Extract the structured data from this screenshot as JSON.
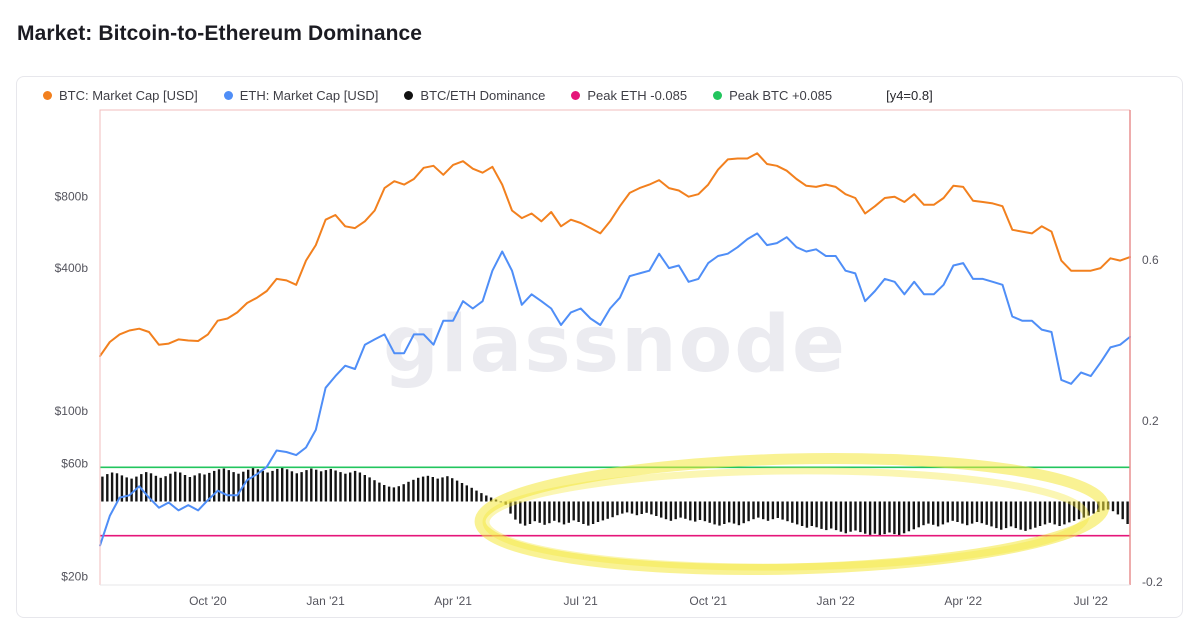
{
  "page": {
    "title": "Market: Bitcoin-to-Ethereum Dominance",
    "watermark": "glassnode"
  },
  "legend": {
    "items": [
      {
        "label": "BTC: Market Cap [USD]",
        "color": "#f2801e"
      },
      {
        "label": "ETH: Market Cap [USD]",
        "color": "#4f8ef7"
      },
      {
        "label": "BTC/ETH Dominance",
        "color": "#111111"
      },
      {
        "label": "Peak ETH -0.085",
        "color": "#e5157a"
      },
      {
        "label": "Peak BTC +0.085",
        "color": "#22c55e"
      }
    ],
    "axis_note": "[y4=0.8]"
  },
  "chart_data": {
    "type": "line",
    "title": "Market: Bitcoin-to-Ethereum Dominance",
    "watermark": "glassnode",
    "grid": false,
    "legend_position": "top",
    "x_axis": {
      "unit": "weeks since Jul 2020",
      "domain_weeks": [
        0,
        105
      ],
      "ticks": [
        {
          "label": "Oct '20",
          "week": 11
        },
        {
          "label": "Jan '21",
          "week": 23
        },
        {
          "label": "Apr '21",
          "week": 36
        },
        {
          "label": "Jul '21",
          "week": 49
        },
        {
          "label": "Oct '21",
          "week": 62
        },
        {
          "label": "Jan '22",
          "week": 75
        },
        {
          "label": "Apr '22",
          "week": 88
        },
        {
          "label": "Jul '22",
          "week": 101
        }
      ]
    },
    "y_axis_left": {
      "scale": "log",
      "unit": "USD billions",
      "domain": [
        18.4,
        1858
      ],
      "ticks": [
        {
          "label": "$800b",
          "value": 800
        },
        {
          "label": "$400b",
          "value": 400
        },
        {
          "label": "$100b",
          "value": 100
        },
        {
          "label": "$60b",
          "value": 60
        },
        {
          "label": "$20b",
          "value": 20
        }
      ]
    },
    "y_axis_right": {
      "scale": "linear",
      "domain": [
        -0.2075,
        0.973
      ],
      "note": "[y4=0.8]",
      "ticks": [
        {
          "label": "0.6",
          "value": 0.6
        },
        {
          "label": "0.2",
          "value": 0.2
        },
        {
          "label": "-0.2",
          "value": -0.2
        }
      ]
    },
    "series": [
      {
        "name": "BTC: Market Cap [USD]",
        "type": "line",
        "axis": "left",
        "color": "#f2801e",
        "unit": "$b",
        "values": [
          170,
          195,
          210,
          218,
          222,
          215,
          190,
          192,
          200,
          198,
          197,
          210,
          240,
          245,
          260,
          285,
          300,
          320,
          360,
          355,
          340,
          430,
          500,
          640,
          670,
          600,
          590,
          630,
          700,
          870,
          930,
          900,
          950,
          1060,
          1080,
          990,
          1090,
          1130,
          1050,
          1010,
          1070,
          900,
          700,
          650,
          680,
          630,
          690,
          600,
          640,
          620,
          590,
          560,
          630,
          730,
          830,
          870,
          900,
          940,
          870,
          850,
          800,
          820,
          900,
          1040,
          1150,
          1160,
          1160,
          1220,
          1100,
          1080,
          1030,
          950,
          890,
          880,
          900,
          880,
          820,
          790,
          680,
          730,
          790,
          800,
          760,
          820,
          740,
          740,
          790,
          890,
          880,
          770,
          760,
          750,
          730,
          580,
          570,
          560,
          600,
          570,
          430,
          390,
          390,
          390,
          400,
          440,
          430,
          445
        ]
      },
      {
        "name": "ETH: Market Cap [USD]",
        "type": "line",
        "axis": "left",
        "color": "#4f8ef7",
        "unit": "$b",
        "values": [
          27,
          36,
          43,
          44,
          48,
          43,
          39,
          41,
          38,
          40,
          38,
          42,
          46,
          44,
          44,
          51,
          54,
          58,
          68,
          67,
          65,
          70,
          83,
          125,
          140,
          155,
          150,
          190,
          200,
          210,
          175,
          175,
          210,
          210,
          190,
          240,
          240,
          290,
          270,
          290,
          390,
          470,
          390,
          280,
          310,
          290,
          270,
          230,
          260,
          270,
          245,
          230,
          270,
          300,
          370,
          380,
          390,
          460,
          400,
          410,
          350,
          360,
          420,
          450,
          460,
          490,
          530,
          560,
          500,
          510,
          540,
          490,
          470,
          480,
          450,
          450,
          390,
          380,
          290,
          320,
          360,
          350,
          310,
          350,
          310,
          310,
          340,
          410,
          420,
          360,
          360,
          350,
          340,
          250,
          240,
          240,
          220,
          215,
          135,
          130,
          145,
          140,
          160,
          185,
          190,
          205
        ]
      },
      {
        "name": "BTC/ETH Dominance",
        "type": "bar",
        "axis": "right",
        "color": "#141414",
        "baseline": 0,
        "values": [
          0.062,
          0.068,
          0.072,
          0.07,
          0.065,
          0.06,
          0.057,
          0.062,
          0.068,
          0.073,
          0.07,
          0.064,
          0.059,
          0.063,
          0.069,
          0.074,
          0.072,
          0.066,
          0.061,
          0.065,
          0.07,
          0.067,
          0.071,
          0.076,
          0.08,
          0.082,
          0.078,
          0.073,
          0.069,
          0.074,
          0.079,
          0.083,
          0.08,
          0.076,
          0.072,
          0.076,
          0.081,
          0.084,
          0.08,
          0.075,
          0.07,
          0.073,
          0.078,
          0.082,
          0.079,
          0.075,
          0.078,
          0.081,
          0.077,
          0.073,
          0.069,
          0.072,
          0.076,
          0.072,
          0.066,
          0.06,
          0.053,
          0.047,
          0.041,
          0.037,
          0.035,
          0.038,
          0.043,
          0.049,
          0.054,
          0.059,
          0.062,
          0.064,
          0.061,
          0.057,
          0.06,
          0.063,
          0.058,
          0.052,
          0.046,
          0.04,
          0.034,
          0.027,
          0.021,
          0.015,
          0.01,
          0.005,
          0.0,
          -0.008,
          -0.03,
          -0.045,
          -0.055,
          -0.06,
          -0.056,
          -0.049,
          -0.053,
          -0.058,
          -0.054,
          -0.048,
          -0.052,
          -0.057,
          -0.053,
          -0.047,
          -0.051,
          -0.056,
          -0.06,
          -0.056,
          -0.051,
          -0.047,
          -0.043,
          -0.039,
          -0.034,
          -0.03,
          -0.027,
          -0.03,
          -0.034,
          -0.031,
          -0.028,
          -0.032,
          -0.036,
          -0.04,
          -0.044,
          -0.048,
          -0.044,
          -0.04,
          -0.043,
          -0.047,
          -0.05,
          -0.046,
          -0.049,
          -0.053,
          -0.057,
          -0.06,
          -0.056,
          -0.052,
          -0.055,
          -0.059,
          -0.054,
          -0.049,
          -0.044,
          -0.04,
          -0.044,
          -0.048,
          -0.044,
          -0.041,
          -0.045,
          -0.049,
          -0.053,
          -0.057,
          -0.061,
          -0.065,
          -0.061,
          -0.064,
          -0.068,
          -0.071,
          -0.067,
          -0.071,
          -0.075,
          -0.079,
          -0.075,
          -0.072,
          -0.076,
          -0.08,
          -0.083,
          -0.08,
          -0.084,
          -0.081,
          -0.077,
          -0.081,
          -0.084,
          -0.079,
          -0.074,
          -0.069,
          -0.064,
          -0.059,
          -0.055,
          -0.058,
          -0.062,
          -0.057,
          -0.052,
          -0.048,
          -0.051,
          -0.055,
          -0.059,
          -0.055,
          -0.051,
          -0.054,
          -0.058,
          -0.062,
          -0.066,
          -0.07,
          -0.066,
          -0.062,
          -0.066,
          -0.07,
          -0.073,
          -0.069,
          -0.065,
          -0.061,
          -0.057,
          -0.053,
          -0.057,
          -0.061,
          -0.057,
          -0.052,
          -0.048,
          -0.044,
          -0.04,
          -0.035,
          -0.03,
          -0.026,
          -0.022,
          -0.02,
          -0.024,
          -0.032,
          -0.044,
          -0.056
        ]
      }
    ],
    "reference_lines": [
      {
        "label": "Peak BTC +0.085",
        "axis": "right",
        "value": 0.085,
        "color": "#22c55e"
      },
      {
        "label": "Peak ETH -0.085",
        "axis": "right",
        "value": -0.085,
        "color": "#e5157a"
      }
    ],
    "annotations": [
      {
        "type": "ellipse-highlight",
        "color": "#f4e83a",
        "opacity": 0.55,
        "note": "hand-drawn yellow highlight around the negative dominance bars (mid-2021 to mid-2022)"
      }
    ]
  }
}
